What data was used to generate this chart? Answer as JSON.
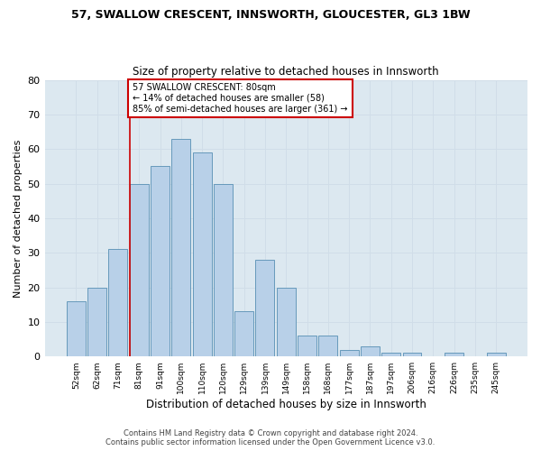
{
  "title1": "57, SWALLOW CRESCENT, INNSWORTH, GLOUCESTER, GL3 1BW",
  "title2": "Size of property relative to detached houses in Innsworth",
  "xlabel": "Distribution of detached houses by size in Innsworth",
  "ylabel": "Number of detached properties",
  "bar_labels": [
    "52sqm",
    "62sqm",
    "71sqm",
    "81sqm",
    "91sqm",
    "100sqm",
    "110sqm",
    "120sqm",
    "129sqm",
    "139sqm",
    "149sqm",
    "158sqm",
    "168sqm",
    "177sqm",
    "187sqm",
    "197sqm",
    "206sqm",
    "216sqm",
    "226sqm",
    "235sqm",
    "245sqm"
  ],
  "bar_heights": [
    16,
    20,
    31,
    50,
    55,
    63,
    59,
    50,
    13,
    28,
    20,
    6,
    6,
    2,
    3,
    1,
    1,
    0,
    1,
    0,
    1
  ],
  "bar_color": "#b8d0e8",
  "bar_edge_color": "#6699bb",
  "property_label": "57 SWALLOW CRESCENT: 80sqm",
  "annotation_line1": "← 14% of detached houses are smaller (58)",
  "annotation_line2": "85% of semi-detached houses are larger (361) →",
  "red_line_color": "#cc0000",
  "annotation_box_edge": "#cc0000",
  "annotation_box_face": "#ffffff",
  "footer1": "Contains HM Land Registry data © Crown copyright and database right 2024.",
  "footer2": "Contains public sector information licensed under the Open Government Licence v3.0.",
  "ylim": [
    0,
    80
  ],
  "yticks": [
    0,
    10,
    20,
    30,
    40,
    50,
    60,
    70,
    80
  ],
  "grid_color": "#d0dde8",
  "fig_bg_color": "#ffffff",
  "plot_bg_color": "#dce8f0"
}
